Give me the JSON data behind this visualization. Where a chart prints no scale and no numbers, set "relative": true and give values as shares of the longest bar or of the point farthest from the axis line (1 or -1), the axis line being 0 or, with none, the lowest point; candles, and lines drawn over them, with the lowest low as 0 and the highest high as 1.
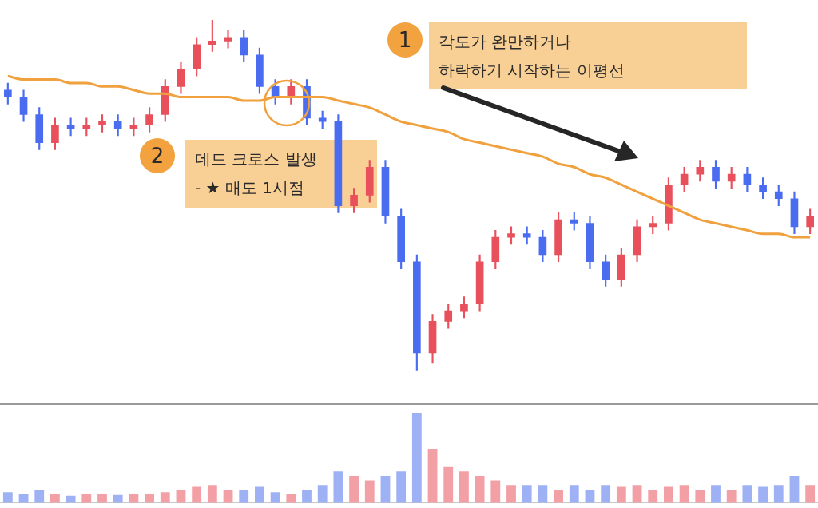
{
  "chart_data": [
    {
      "type": "candlestick",
      "relative": true,
      "categories": [
        null,
        null,
        null,
        null,
        null,
        null,
        null,
        null,
        null,
        null,
        null,
        null,
        null,
        null,
        null,
        null,
        null,
        null,
        null,
        null,
        null,
        null,
        null,
        null,
        null,
        null,
        null,
        null,
        null,
        null,
        null,
        null,
        null,
        null,
        null,
        null,
        null,
        null,
        null,
        null,
        null,
        null,
        null,
        null,
        null,
        null,
        null,
        null,
        null,
        null,
        null,
        null
      ],
      "ohlc": [
        [
          0.8,
          0.82,
          0.76,
          0.78
        ],
        [
          0.78,
          0.8,
          0.71,
          0.73
        ],
        [
          0.73,
          0.75,
          0.63,
          0.65
        ],
        [
          0.65,
          0.72,
          0.63,
          0.7
        ],
        [
          0.7,
          0.72,
          0.67,
          0.69
        ],
        [
          0.69,
          0.72,
          0.67,
          0.7
        ],
        [
          0.7,
          0.73,
          0.68,
          0.71
        ],
        [
          0.71,
          0.73,
          0.67,
          0.69
        ],
        [
          0.69,
          0.72,
          0.67,
          0.7
        ],
        [
          0.7,
          0.75,
          0.68,
          0.73
        ],
        [
          0.73,
          0.83,
          0.71,
          0.81
        ],
        [
          0.81,
          0.88,
          0.79,
          0.86
        ],
        [
          0.86,
          0.95,
          0.84,
          0.93
        ],
        [
          0.93,
          1,
          0.91,
          0.94
        ],
        [
          0.94,
          0.97,
          0.92,
          0.95
        ],
        [
          0.95,
          0.97,
          0.88,
          0.9
        ],
        [
          0.9,
          0.92,
          0.79,
          0.81
        ],
        [
          0.81,
          0.83,
          0.76,
          0.78
        ],
        [
          0.78,
          0.83,
          0.76,
          0.81
        ],
        [
          0.81,
          0.83,
          0.7,
          0.72
        ],
        [
          0.72,
          0.74,
          0.69,
          0.71
        ],
        [
          0.71,
          0.73,
          0.45,
          0.47
        ],
        [
          0.47,
          0.52,
          0.45,
          0.5
        ],
        [
          0.5,
          0.6,
          0.48,
          0.58
        ],
        [
          0.58,
          0.6,
          0.42,
          0.44
        ],
        [
          0.44,
          0.46,
          0.29,
          0.31
        ],
        [
          0.31,
          0.33,
          0,
          0.05
        ],
        [
          0.05,
          0.16,
          0.02,
          0.14
        ],
        [
          0.14,
          0.19,
          0.12,
          0.17
        ],
        [
          0.17,
          0.21,
          0.15,
          0.19
        ],
        [
          0.19,
          0.33,
          0.17,
          0.31
        ],
        [
          0.31,
          0.4,
          0.29,
          0.38
        ],
        [
          0.38,
          0.41,
          0.36,
          0.39
        ],
        [
          0.39,
          0.41,
          0.36,
          0.38
        ],
        [
          0.38,
          0.4,
          0.31,
          0.33
        ],
        [
          0.33,
          0.45,
          0.31,
          0.43
        ],
        [
          0.43,
          0.45,
          0.4,
          0.42
        ],
        [
          0.42,
          0.44,
          0.29,
          0.31
        ],
        [
          0.31,
          0.33,
          0.24,
          0.26
        ],
        [
          0.26,
          0.35,
          0.24,
          0.33
        ],
        [
          0.33,
          0.43,
          0.31,
          0.41
        ],
        [
          0.41,
          0.44,
          0.39,
          0.42
        ],
        [
          0.42,
          0.55,
          0.4,
          0.53
        ],
        [
          0.53,
          0.58,
          0.51,
          0.56
        ],
        [
          0.56,
          0.6,
          0.54,
          0.58
        ],
        [
          0.58,
          0.6,
          0.52,
          0.54
        ],
        [
          0.54,
          0.58,
          0.52,
          0.56
        ],
        [
          0.56,
          0.58,
          0.51,
          0.53
        ],
        [
          0.53,
          0.55,
          0.49,
          0.51
        ],
        [
          0.51,
          0.53,
          0.47,
          0.49
        ],
        [
          0.49,
          0.51,
          0.39,
          0.41
        ],
        [
          0.41,
          0.46,
          0.39,
          0.44
        ]
      ],
      "colors": [
        "#4a6cf0",
        "#4a6cf0",
        "#4a6cf0",
        "#e8505b",
        "#4a6cf0",
        "#e8505b",
        "#e8505b",
        "#4a6cf0",
        "#e8505b",
        "#e8505b",
        "#e8505b",
        "#e8505b",
        "#e8505b",
        "#e8505b",
        "#e8505b",
        "#4a6cf0",
        "#4a6cf0",
        "#4a6cf0",
        "#e8505b",
        "#4a6cf0",
        "#4a6cf0",
        "#4a6cf0",
        "#e8505b",
        "#e8505b",
        "#4a6cf0",
        "#4a6cf0",
        "#4a6cf0",
        "#e8505b",
        "#e8505b",
        "#e8505b",
        "#e8505b",
        "#e8505b",
        "#e8505b",
        "#4a6cf0",
        "#4a6cf0",
        "#e8505b",
        "#4a6cf0",
        "#4a6cf0",
        "#4a6cf0",
        "#e8505b",
        "#e8505b",
        "#e8505b",
        "#e8505b",
        "#e8505b",
        "#e8505b",
        "#4a6cf0",
        "#e8505b",
        "#4a6cf0",
        "#4a6cf0",
        "#4a6cf0",
        "#4a6cf0",
        "#e8505b"
      ],
      "series": [
        {
          "type": "line",
          "color": "#f0a03c",
          "marker": "none",
          "values": [
            0.84,
            0.83,
            0.83,
            0.83,
            0.82,
            0.82,
            0.81,
            0.81,
            0.8,
            0.79,
            0.79,
            0.78,
            0.78,
            0.78,
            0.78,
            0.77,
            0.77,
            0.78,
            0.78,
            0.78,
            0.78,
            0.77,
            0.76,
            0.75,
            0.73,
            0.71,
            0.7,
            0.69,
            0.68,
            0.66,
            0.65,
            0.64,
            0.63,
            0.62,
            0.61,
            0.59,
            0.58,
            0.56,
            0.55,
            0.53,
            0.51,
            0.49,
            0.47,
            0.45,
            0.43,
            0.42,
            0.41,
            0.4,
            0.39,
            0.39,
            0.38,
            0.38
          ]
        }
      ],
      "annotations": [
        "1",
        "각도가 완만하거나\n하락하기 시작하는 이평선",
        "2",
        "데드 크로스 발생\n- ★ 매도 1시점"
      ]
    },
    {
      "type": "bar",
      "relative": true,
      "categories": [
        null,
        null,
        null,
        null,
        null,
        null,
        null,
        null,
        null,
        null,
        null,
        null,
        null,
        null,
        null,
        null,
        null,
        null,
        null,
        null,
        null,
        null,
        null,
        null,
        null,
        null,
        null,
        null,
        null,
        null,
        null,
        null,
        null,
        null,
        null,
        null,
        null,
        null,
        null,
        null,
        null,
        null,
        null,
        null,
        null,
        null,
        null,
        null,
        null,
        null,
        null,
        null
      ],
      "values": [
        0.12,
        0.1,
        0.15,
        0.1,
        0.08,
        0.1,
        0.1,
        0.09,
        0.1,
        0.1,
        0.12,
        0.15,
        0.18,
        0.2,
        0.15,
        0.15,
        0.18,
        0.12,
        0.1,
        0.15,
        0.2,
        0.35,
        0.3,
        0.25,
        0.3,
        0.35,
        1,
        0.6,
        0.4,
        0.35,
        0.3,
        0.25,
        0.2,
        0.2,
        0.2,
        0.15,
        0.2,
        0.15,
        0.2,
        0.18,
        0.2,
        0.15,
        0.18,
        0.2,
        0.15,
        0.2,
        0.15,
        0.2,
        0.18,
        0.2,
        0.3,
        0.2
      ],
      "colors": [
        "#9fb1f5",
        "#9fb1f5",
        "#9fb1f5",
        "#f2a0a6",
        "#9fb1f5",
        "#f2a0a6",
        "#f2a0a6",
        "#9fb1f5",
        "#f2a0a6",
        "#f2a0a6",
        "#f2a0a6",
        "#f2a0a6",
        "#f2a0a6",
        "#f2a0a6",
        "#f2a0a6",
        "#9fb1f5",
        "#9fb1f5",
        "#9fb1f5",
        "#f2a0a6",
        "#9fb1f5",
        "#9fb1f5",
        "#9fb1f5",
        "#f2a0a6",
        "#f2a0a6",
        "#9fb1f5",
        "#9fb1f5",
        "#9fb1f5",
        "#f2a0a6",
        "#f2a0a6",
        "#f2a0a6",
        "#f2a0a6",
        "#f2a0a6",
        "#f2a0a6",
        "#9fb1f5",
        "#9fb1f5",
        "#f2a0a6",
        "#9fb1f5",
        "#9fb1f5",
        "#9fb1f5",
        "#f2a0a6",
        "#f2a0a6",
        "#f2a0a6",
        "#f2a0a6",
        "#f2a0a6",
        "#f2a0a6",
        "#9fb1f5",
        "#f2a0a6",
        "#9fb1f5",
        "#9fb1f5",
        "#9fb1f5",
        "#9fb1f5",
        "#f2a0a6"
      ]
    }
  ]
}
